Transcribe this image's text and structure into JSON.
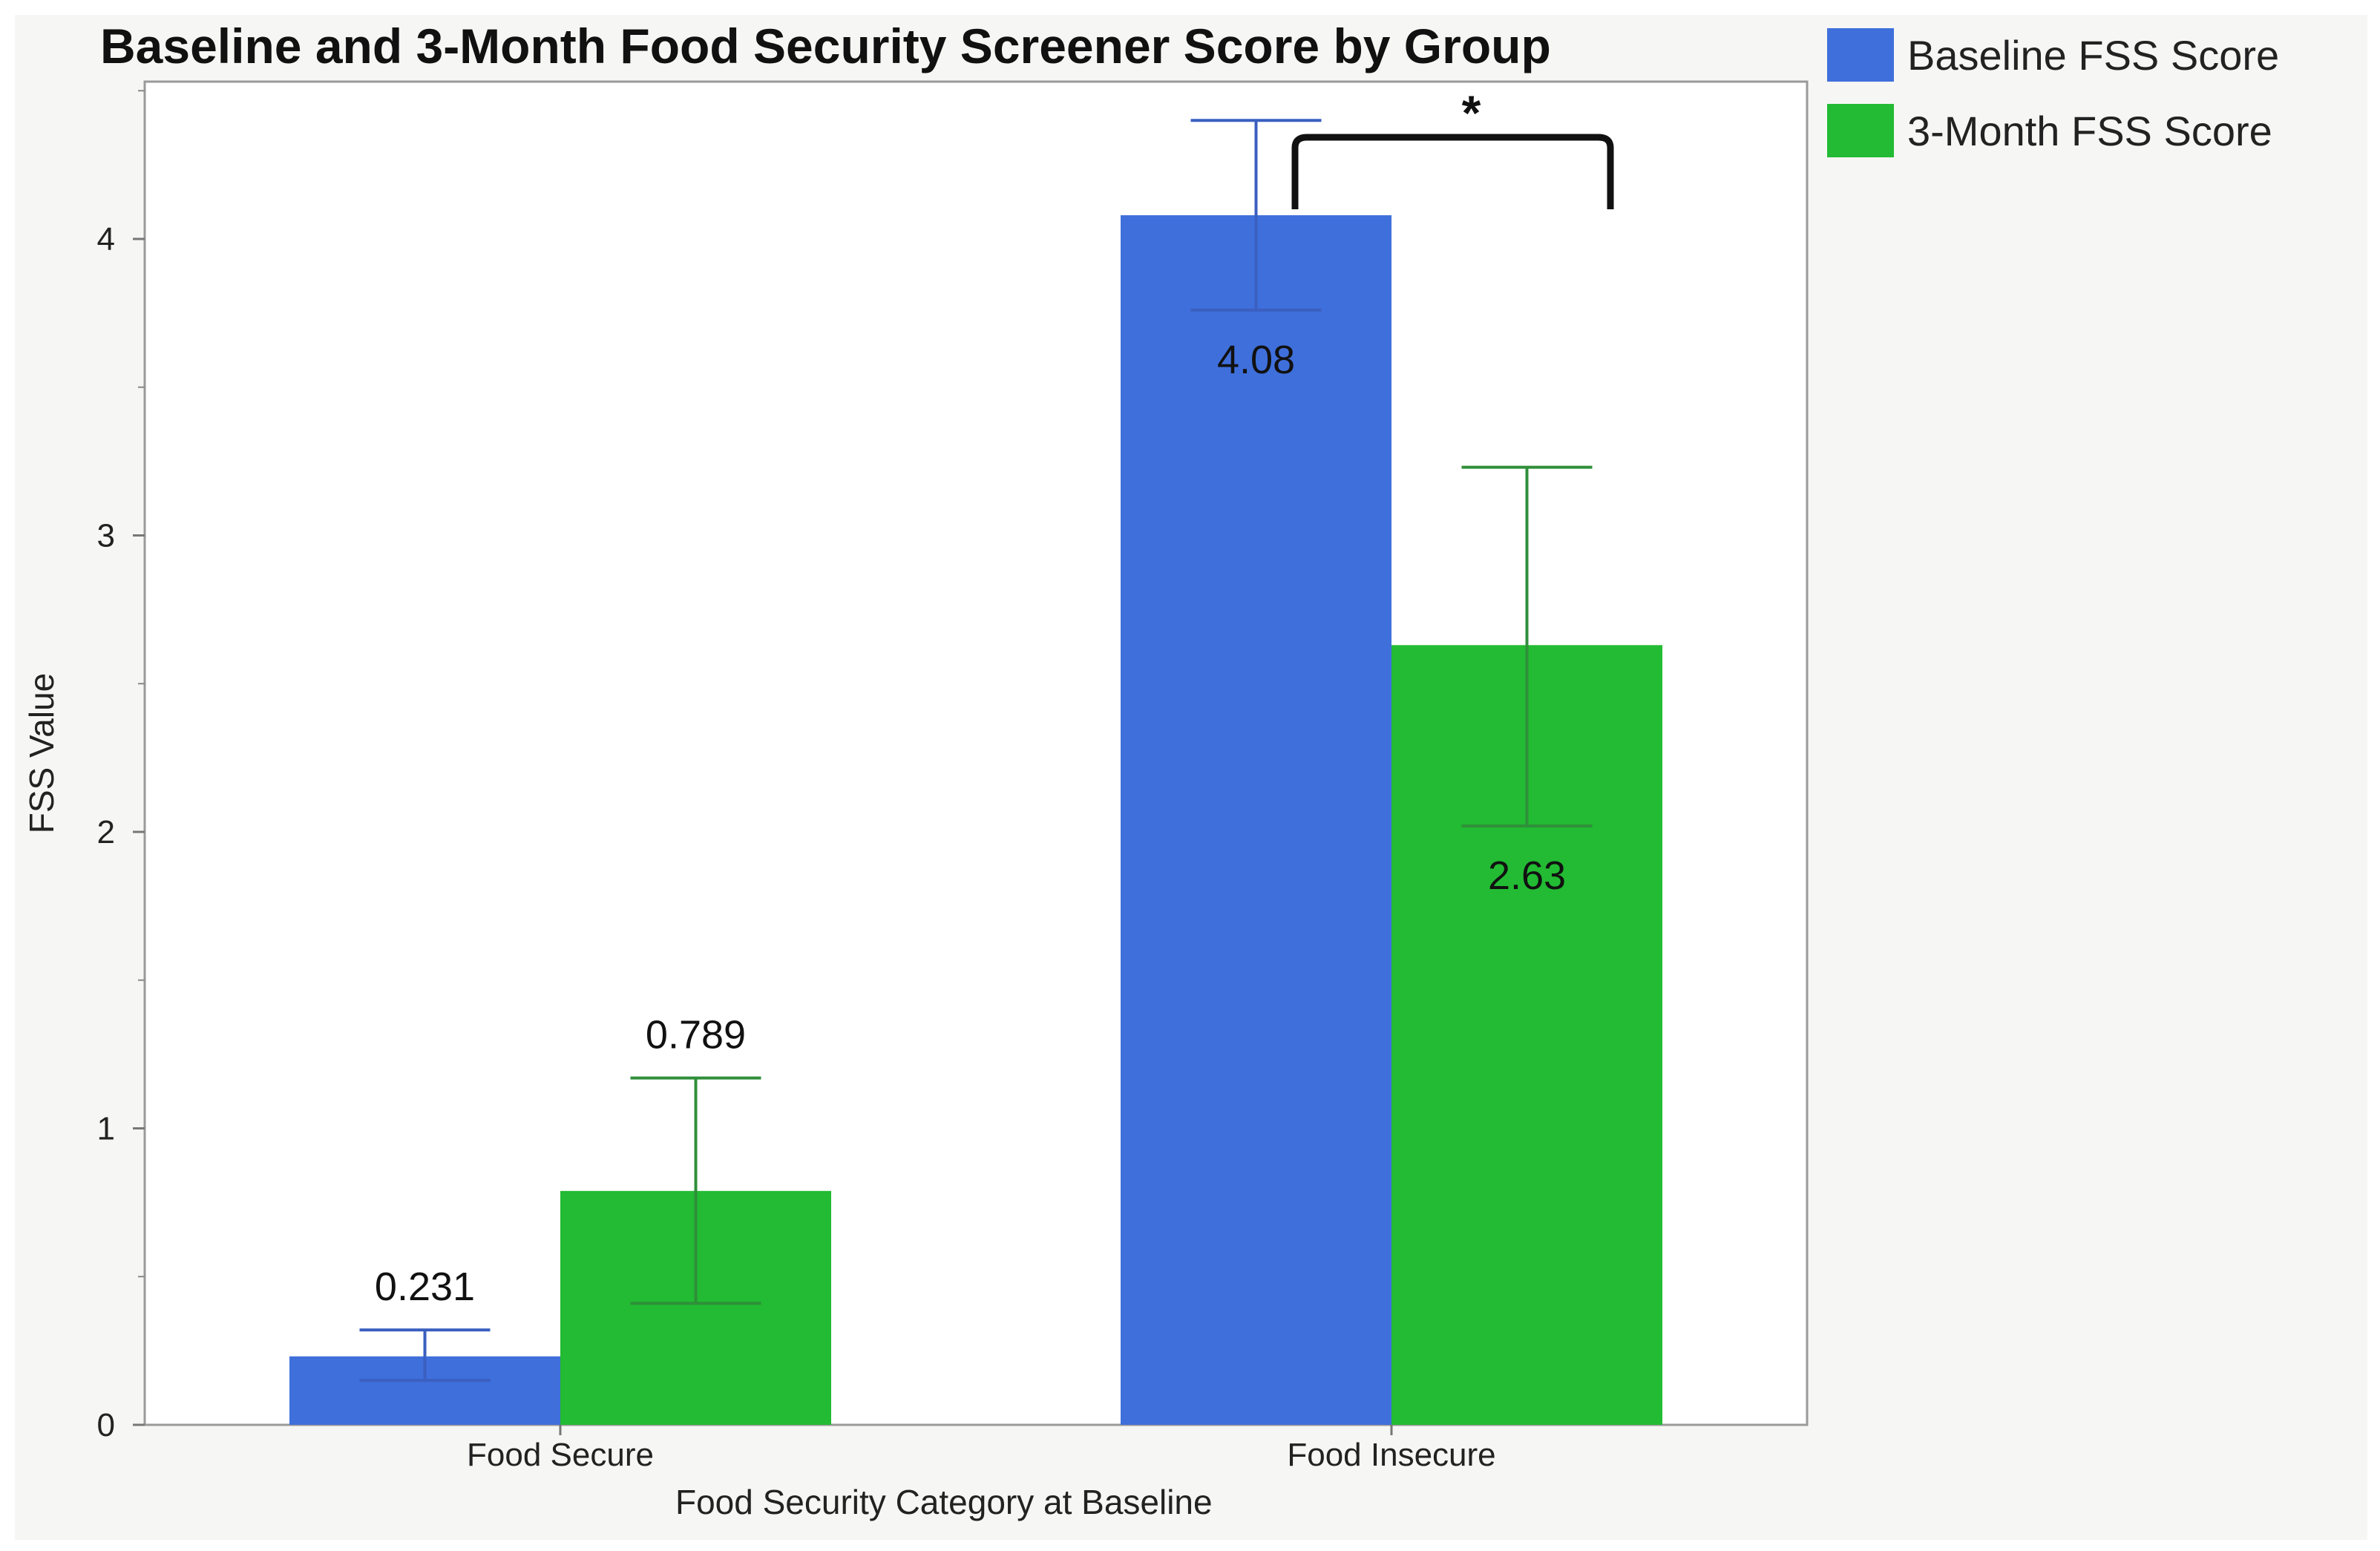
{
  "chart_data": {
    "type": "bar",
    "title": "Baseline and 3-Month Food Security Screener Score by Group",
    "xlabel": "Food Security Category at Baseline",
    "ylabel": "FSS Value",
    "categories": [
      "Food Secure",
      "Food Insecure"
    ],
    "ylim": [
      0,
      4.5
    ],
    "yticks": [
      0,
      1,
      2,
      3,
      4
    ],
    "grid": false,
    "legend_position": "top-right, outside plot",
    "series": [
      {
        "name": "Baseline FSS Score",
        "color": "#3f6fdb",
        "values": [
          0.231,
          4.08
        ],
        "labels": [
          "0.231",
          "4.08"
        ],
        "error_low": [
          0.15,
          3.76
        ],
        "error_high": [
          0.32,
          4.4
        ]
      },
      {
        "name": "3-Month FSS Score",
        "color": "#22bb33",
        "values": [
          0.789,
          2.63
        ],
        "labels": [
          "0.789",
          "2.63"
        ],
        "error_low": [
          0.41,
          2.02
        ],
        "error_high": [
          1.17,
          3.23
        ]
      }
    ],
    "annotations": [
      {
        "text": "*",
        "type": "significance-bracket",
        "category": "Food Insecure"
      }
    ]
  }
}
